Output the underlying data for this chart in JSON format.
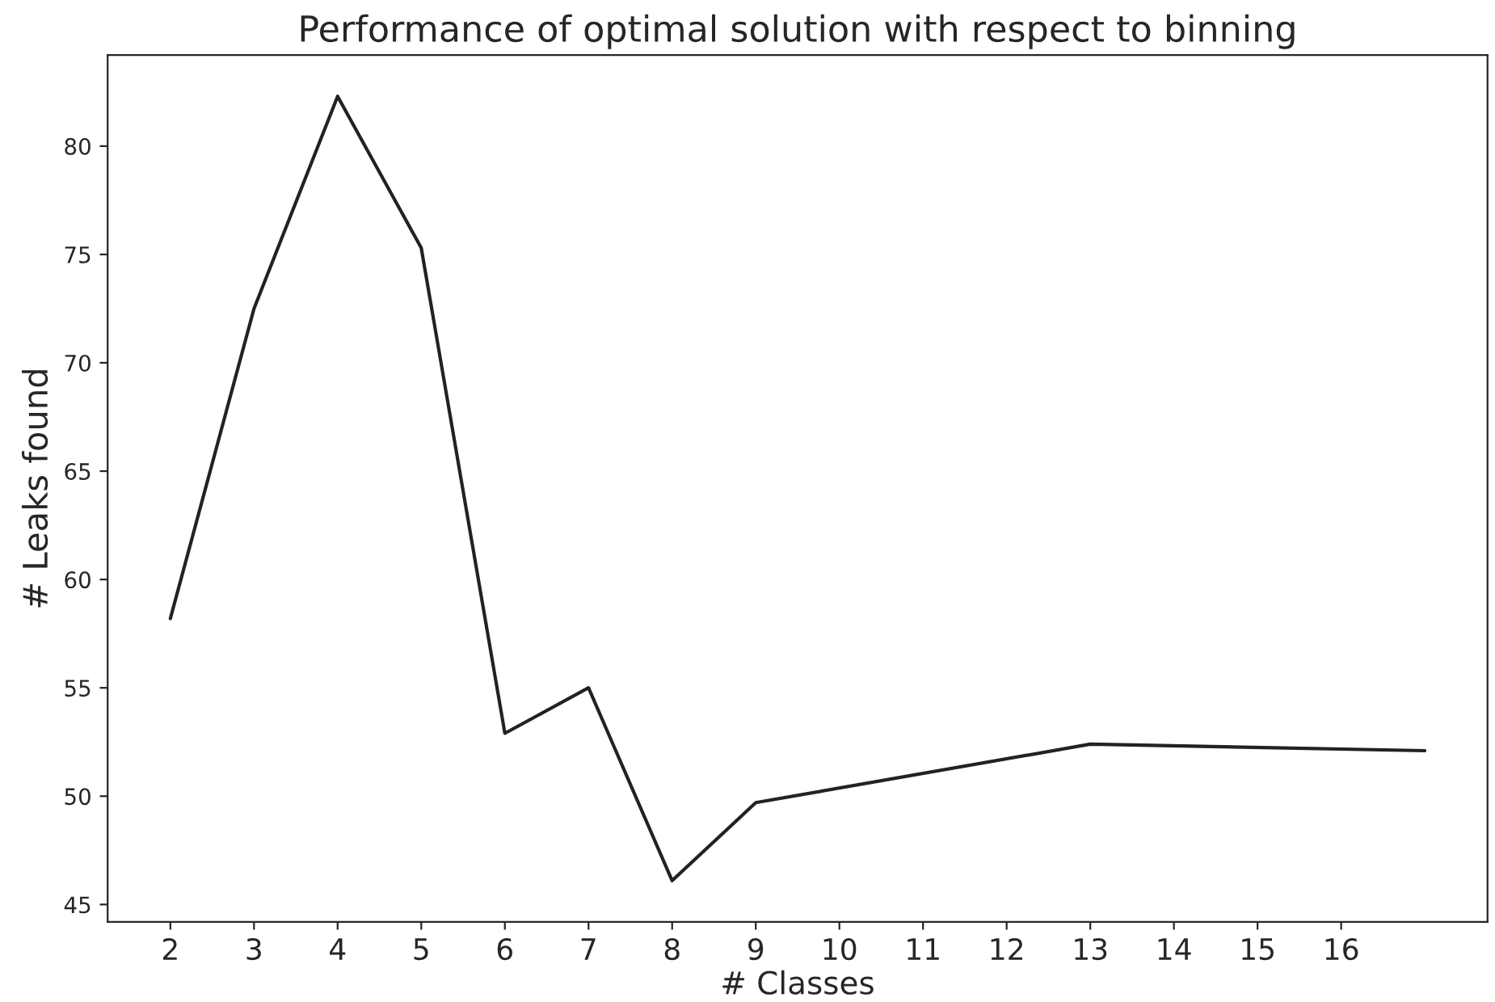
{
  "chart_data": {
    "type": "line",
    "title": "Performance of optimal solution with respect to binning",
    "xlabel": "# Classes",
    "ylabel": "# Leaks found",
    "series": [
      {
        "color": "#222222",
        "x": [
          2,
          3,
          4,
          5,
          6,
          7,
          8,
          9,
          13,
          17
        ],
        "values": [
          58.2,
          72.5,
          82.3,
          75.3,
          52.9,
          55.0,
          46.1,
          49.7,
          52.4,
          52.1
        ]
      }
    ],
    "xlim": [
      1.25,
      17.75
    ],
    "xticks": [
      2,
      3,
      4,
      5,
      6,
      7,
      8,
      9,
      10,
      11,
      12,
      13,
      14,
      15,
      16
    ],
    "ylim": [
      44.2,
      84.2
    ],
    "yticks": [
      45,
      50,
      55,
      60,
      65,
      70,
      75,
      80
    ],
    "grid": false,
    "legend": false
  }
}
